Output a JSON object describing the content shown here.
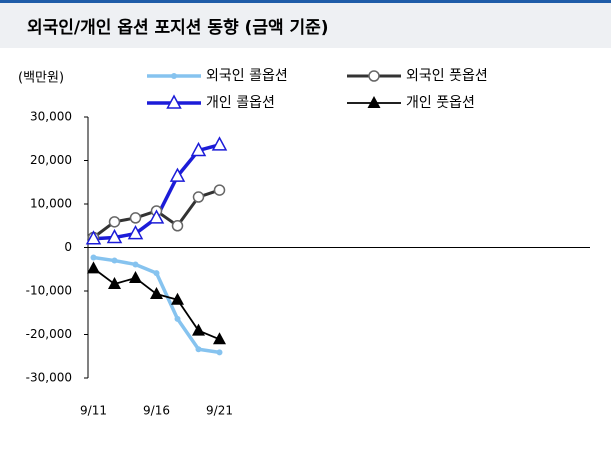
{
  "chart_data": {
    "type": "line",
    "title": "외국인/개인 옵션 포지션 동향 (금액 기준)",
    "y_label": "(백만원)",
    "categories": [
      "9/11",
      null,
      null,
      "9/16",
      null,
      null,
      "9/21",
      null,
      null,
      null,
      null,
      null,
      null,
      null,
      null,
      null,
      null,
      null,
      null,
      null,
      null,
      null,
      null,
      null
    ],
    "series": [
      {
        "name": "외국인 콜옵션",
        "color": "#86c3ef",
        "marker": "dot",
        "values": [
          -2300,
          -3000,
          -3900,
          -5900,
          -16400,
          -23400,
          -24100,
          null,
          null,
          null,
          null,
          null,
          null,
          null,
          null,
          null,
          null,
          null,
          null,
          null,
          null,
          null,
          null,
          null
        ]
      },
      {
        "name": "외국인 풋옵션",
        "color": "#333333",
        "marker": "circle-open",
        "values": [
          2300,
          5900,
          6800,
          8400,
          5000,
          11600,
          13200,
          null,
          null,
          null,
          null,
          null,
          null,
          null,
          null,
          null,
          null,
          null,
          null,
          null,
          null,
          null,
          null,
          null
        ]
      },
      {
        "name": "개인 콜옵션",
        "color": "#1c1cd8",
        "marker": "triangle-open",
        "values": [
          2000,
          2300,
          3200,
          6800,
          16400,
          22300,
          23600,
          null,
          null,
          null,
          null,
          null,
          null,
          null,
          null,
          null,
          null,
          null,
          null,
          null,
          null,
          null,
          null,
          null
        ]
      },
      {
        "name": "개인 풋옵션",
        "color": "#000000",
        "marker": "triangle",
        "values": [
          -4800,
          -8400,
          -7000,
          -10700,
          -12000,
          -19100,
          -21100,
          null,
          null,
          null,
          null,
          null,
          null,
          null,
          null,
          null,
          null,
          null,
          null,
          null,
          null,
          null,
          null,
          null
        ]
      }
    ],
    "ylim": [
      -30000,
      30000
    ],
    "yticks": [
      {
        "value": -30000,
        "label": "-30,000"
      },
      {
        "value": -20000,
        "label": "-20,000"
      },
      {
        "value": -10000,
        "label": "-10,000"
      },
      0,
      {
        "value": 10000,
        "label": "10,000"
      },
      {
        "value": 20000,
        "label": "20,000"
      },
      {
        "value": 30000,
        "label": "30,000"
      }
    ],
    "grid": false
  }
}
